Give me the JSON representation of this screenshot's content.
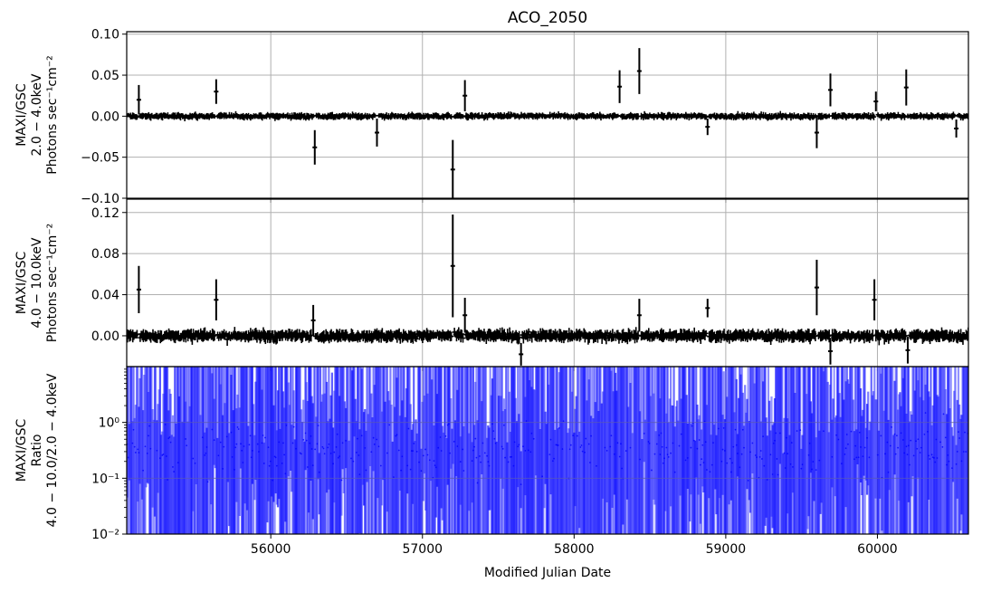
{
  "title": "ACO_2050",
  "xlabel": "Modified Julian Date",
  "chart_data": [
    {
      "type": "scatter",
      "name": "panel-2-4keV",
      "ylabel_lines": [
        "MAXI/GSC",
        "2.0 − 4.0keV",
        "Photons sec⁻¹cm⁻²"
      ],
      "xlim": [
        55050,
        60600
      ],
      "ylim": [
        -0.1,
        0.103
      ],
      "xticks": [
        56000,
        57000,
        58000,
        59000,
        60000
      ],
      "yticks": [
        -0.1,
        -0.05,
        0.0,
        0.05,
        0.1
      ],
      "ytick_labels": [
        "−0.10",
        "−0.05",
        "0.00",
        "0.05",
        "0.10"
      ],
      "grid": true,
      "color": "#000000",
      "outliers": [
        {
          "x": 55130,
          "y": 0.02,
          "err": 0.018
        },
        {
          "x": 55640,
          "y": 0.03,
          "err": 0.015
        },
        {
          "x": 56290,
          "y": -0.038,
          "err": 0.021
        },
        {
          "x": 56700,
          "y": -0.02,
          "err": 0.017
        },
        {
          "x": 57200,
          "y": -0.065,
          "err": 0.036
        },
        {
          "x": 57280,
          "y": 0.025,
          "err": 0.019
        },
        {
          "x": 58300,
          "y": 0.036,
          "err": 0.02
        },
        {
          "x": 58430,
          "y": 0.055,
          "err": 0.028
        },
        {
          "x": 58880,
          "y": -0.013,
          "err": 0.01
        },
        {
          "x": 59600,
          "y": -0.02,
          "err": 0.019
        },
        {
          "x": 59690,
          "y": 0.032,
          "err": 0.02
        },
        {
          "x": 59990,
          "y": 0.018,
          "err": 0.012
        },
        {
          "x": 60190,
          "y": 0.035,
          "err": 0.022
        },
        {
          "x": 60520,
          "y": -0.015,
          "err": 0.011
        }
      ]
    },
    {
      "type": "scatter",
      "name": "panel-4-10keV",
      "ylabel_lines": [
        "MAXI/GSC",
        "4.0 − 10.0keV",
        "Photons sec⁻¹cm⁻²"
      ],
      "xlim": [
        55050,
        60600
      ],
      "ylim": [
        -0.03,
        0.133
      ],
      "xticks": [
        56000,
        57000,
        58000,
        59000,
        60000
      ],
      "yticks": [
        0.0,
        0.04,
        0.08,
        0.12
      ],
      "ytick_labels": [
        "0.00",
        "0.04",
        "0.08",
        "0.12"
      ],
      "grid": true,
      "color": "#000000",
      "outliers": [
        {
          "x": 55130,
          "y": 0.045,
          "err": 0.023
        },
        {
          "x": 55640,
          "y": 0.035,
          "err": 0.02
        },
        {
          "x": 56280,
          "y": 0.015,
          "err": 0.015
        },
        {
          "x": 57200,
          "y": 0.068,
          "err": 0.05
        },
        {
          "x": 57280,
          "y": 0.02,
          "err": 0.017
        },
        {
          "x": 57650,
          "y": -0.018,
          "err": 0.011
        },
        {
          "x": 58430,
          "y": 0.02,
          "err": 0.016
        },
        {
          "x": 58880,
          "y": 0.027,
          "err": 0.009
        },
        {
          "x": 59600,
          "y": 0.047,
          "err": 0.027
        },
        {
          "x": 59690,
          "y": -0.015,
          "err": 0.013
        },
        {
          "x": 59980,
          "y": 0.035,
          "err": 0.02
        },
        {
          "x": 60200,
          "y": -0.014,
          "err": 0.013
        }
      ]
    },
    {
      "type": "scatter",
      "name": "panel-ratio",
      "ylabel_lines": [
        "MAXI/GSC",
        "Ratio",
        "4.0 − 10.0/2.0 − 4.0keV"
      ],
      "xlim": [
        55050,
        60600
      ],
      "ylim": [
        0.01,
        10
      ],
      "yscale": "log",
      "xticks": [
        56000,
        57000,
        58000,
        59000,
        60000
      ],
      "yticks": [
        0.01,
        0.1,
        1
      ],
      "ytick_labels": [
        "10⁻²",
        "10⁻¹",
        "10⁰"
      ],
      "grid": true,
      "color": "#0000ff"
    }
  ]
}
